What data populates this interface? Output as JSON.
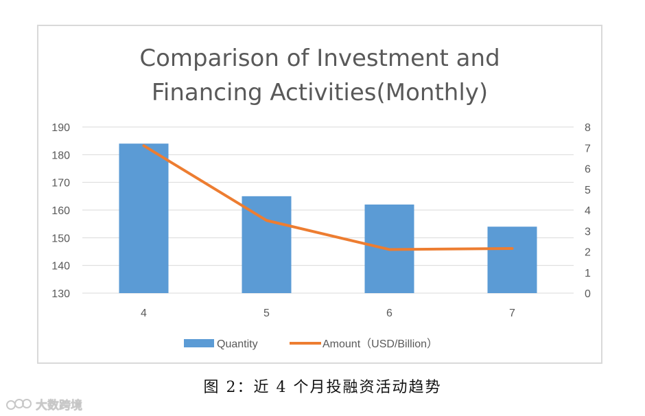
{
  "chart_data": {
    "type": "bar+line",
    "title_lines": [
      "Comparison of Investment and",
      "Financing Activities(Monthly)"
    ],
    "categories": [
      "4",
      "5",
      "6",
      "7"
    ],
    "y_left": {
      "ticks": [
        "130",
        "140",
        "150",
        "160",
        "170",
        "180",
        "190"
      ],
      "range": [
        130,
        190
      ]
    },
    "y_right": {
      "ticks": [
        "0",
        "1",
        "2",
        "3",
        "4",
        "5",
        "6",
        "7",
        "8"
      ],
      "range": [
        0,
        8
      ]
    },
    "grid": true,
    "legend_position": "bottom",
    "series": [
      {
        "name": "Quantity",
        "type": "bar",
        "axis": "left",
        "color": "#5b9bd5",
        "values": [
          184,
          165,
          162,
          154
        ]
      },
      {
        "name": "Amount（USD/Billion）",
        "type": "line",
        "axis": "right",
        "color": "#ed7d31",
        "values": [
          7.1,
          3.5,
          2.1,
          2.15
        ]
      }
    ]
  },
  "caption": "图 2：近 4 个月投融资活动趋势",
  "watermark": {
    "text": "大数跨境",
    "icon": "logo-icon"
  }
}
